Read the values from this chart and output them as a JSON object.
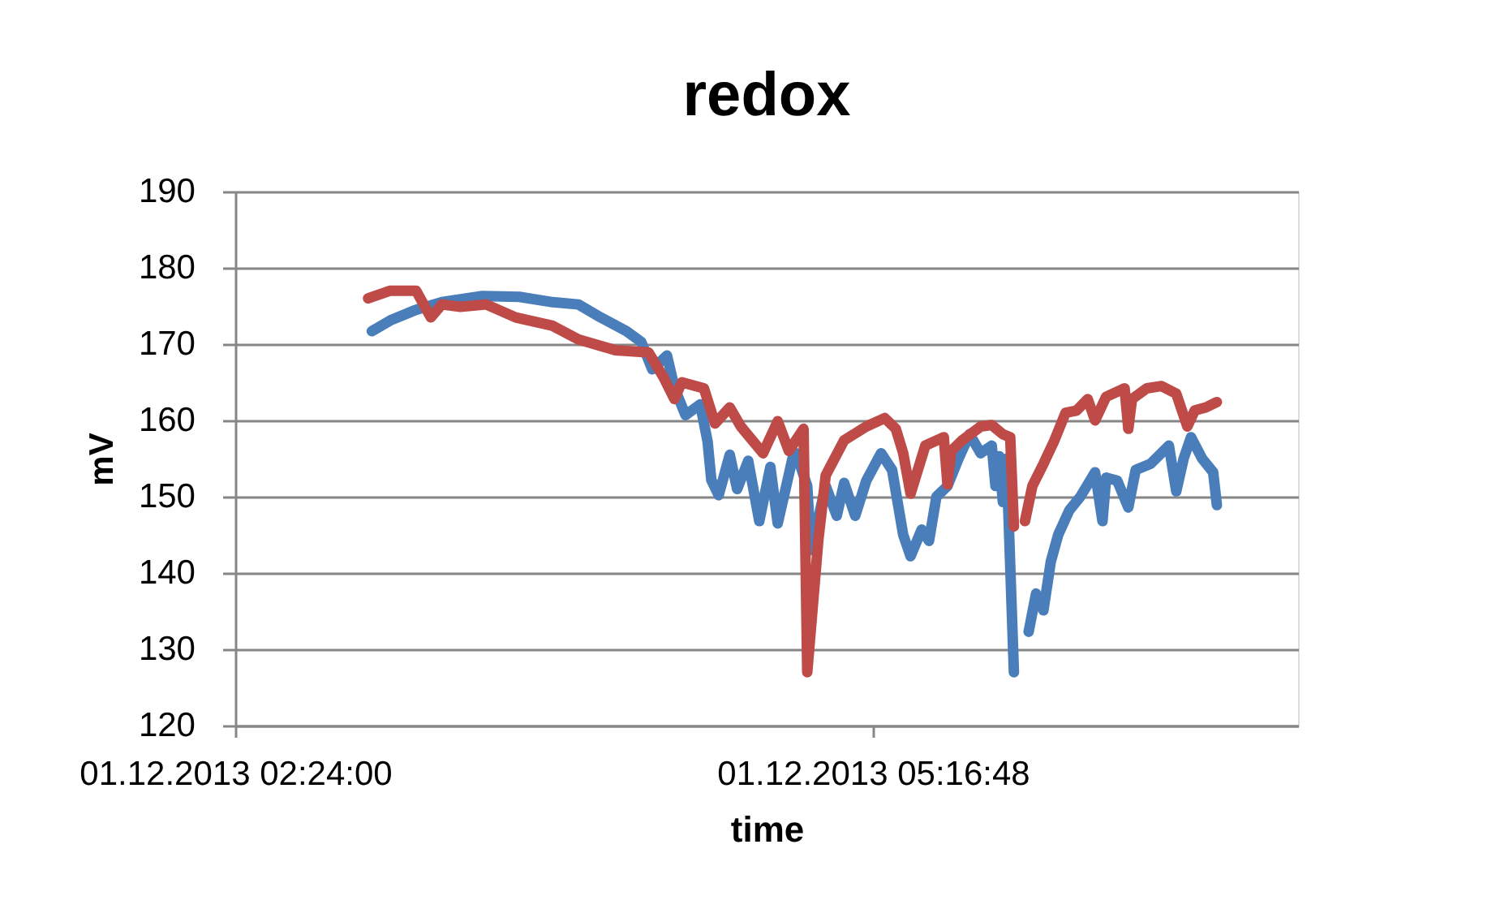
{
  "chart_data": {
    "type": "line",
    "title": "redox",
    "xlabel": "time",
    "ylabel": "mV",
    "xlim": [
      "2013-12-01T02:24",
      "2013-12-01T07:12"
    ],
    "xticks": [
      {
        "value": "2013-12-01T02:24",
        "label": "01.12.2013 02:24:00"
      },
      {
        "value": "2013-12-01T05:16:48",
        "label": "01.12.2013 05:16:48"
      }
    ],
    "ylim": [
      120,
      190
    ],
    "yticks": [
      120,
      130,
      140,
      150,
      160,
      170,
      180,
      190
    ],
    "grid": "y",
    "series": [
      {
        "color": "#4a7ebb",
        "x": [
          "2013-12-01T03:01",
          "2013-12-01T03:06",
          "2013-12-01T03:13",
          "2013-12-01T03:20",
          "2013-12-01T03:31",
          "2013-12-01T03:41",
          "2013-12-01T03:50",
          "2013-12-01T03:57",
          "2013-12-01T04:03",
          "2013-12-01T04:10",
          "2013-12-01T04:14",
          "2013-12-01T04:17",
          "2013-12-01T04:21",
          "2013-12-01T04:23",
          "2013-12-01T04:26",
          "2013-12-01T04:30",
          "2013-12-01T04:32",
          "2013-12-01T04:33",
          "2013-12-01T04:35",
          "2013-12-01T04:38",
          "2013-12-01T04:40",
          "2013-12-01T04:43",
          "2013-12-01T04:46",
          "2013-12-01T04:49",
          "2013-12-01T04:51",
          "2013-12-01T04:55",
          "2013-12-01T04:56",
          "2013-12-01T04:59",
          "2013-12-01T05:00",
          "2013-12-01T05:04",
          "2013-12-01T05:07",
          "2013-12-01T05:09",
          "2013-12-01T05:12",
          "2013-12-01T05:15",
          "2013-12-01T05:19",
          "2013-12-01T05:22",
          "2013-12-01T05:25",
          "2013-12-01T05:27",
          "2013-12-01T05:30",
          "2013-12-01T05:32",
          "2013-12-01T05:34",
          "2013-12-01T05:37",
          "2013-12-01T05:40",
          "2013-12-01T05:43",
          "2013-12-01T05:46",
          "2013-12-01T05:49",
          "2013-12-01T05:50",
          "2013-12-01T05:51",
          "2013-12-01T05:52",
          "2013-12-01T05:53",
          "2013-12-01T05:55",
          "2013-12-01T05:57",
          "2013-12-01T05:59",
          "2013-12-01T06:01",
          "2013-12-01T06:03",
          "2013-12-01T06:05",
          "2013-12-01T06:07",
          "2013-12-01T06:10",
          "2013-12-01T06:13",
          "2013-12-01T06:17",
          "2013-12-01T06:19",
          "2013-12-01T06:20",
          "2013-12-01T06:23",
          "2013-12-01T06:26",
          "2013-12-01T06:28",
          "2013-12-01T06:32",
          "2013-12-01T06:37",
          "2013-12-01T06:39",
          "2013-12-01T06:41",
          "2013-12-01T06:43",
          "2013-12-01T06:46",
          "2013-12-01T06:49",
          "2013-12-01T06:50"
        ],
        "values": [
          171.7,
          173.1,
          174.5,
          175.5,
          176.3,
          176.2,
          175.5,
          175.2,
          173.5,
          171.7,
          170.3,
          166.7,
          168.5,
          164.3,
          160.7,
          162.1,
          157.2,
          152.2,
          150.2,
          155.5,
          151.0,
          154.7,
          146.8,
          153.9,
          146.5,
          155.0,
          155.7,
          151.4,
          143.0,
          151.4,
          147.5,
          151.8,
          147.5,
          152.1,
          155.7,
          153.5,
          145.0,
          142.2,
          145.7,
          144.2,
          150.0,
          151.4,
          155.0,
          158.2,
          155.7,
          156.7,
          151.4,
          155.3,
          149.3,
          155.0,
          127.0,
          null,
          132.3,
          137.3,
          135.1,
          141.5,
          145.0,
          148.2,
          150.0,
          153.2,
          146.8,
          152.5,
          152.1,
          148.6,
          153.5,
          154.3,
          156.7,
          150.7,
          155.0,
          157.8,
          155.0,
          153.2,
          148.9
        ]
      },
      {
        "color": "#be4b48",
        "x": [
          "2013-12-01T03:00",
          "2013-12-01T03:06",
          "2013-12-01T03:13",
          "2013-12-01T03:17",
          "2013-12-01T03:20",
          "2013-12-01T03:25",
          "2013-12-01T03:32",
          "2013-12-01T03:40",
          "2013-12-01T03:50",
          "2013-12-01T03:57",
          "2013-12-01T04:07",
          "2013-12-01T04:16",
          "2013-12-01T04:20",
          "2013-12-01T04:23",
          "2013-12-01T04:25",
          "2013-12-01T04:31",
          "2013-12-01T04:34",
          "2013-12-01T04:38",
          "2013-12-01T04:41",
          "2013-12-01T04:47",
          "2013-12-01T04:51",
          "2013-12-01T04:54",
          "2013-12-01T04:58",
          "2013-12-01T04:59",
          "2013-12-01T05:02",
          "2013-12-01T05:04",
          "2013-12-01T05:09",
          "2013-12-01T05:15",
          "2013-12-01T05:20",
          "2013-12-01T05:23",
          "2013-12-01T05:25",
          "2013-12-01T05:27",
          "2013-12-01T05:31",
          "2013-12-01T05:36",
          "2013-12-01T05:37",
          "2013-12-01T05:38",
          "2013-12-01T05:41",
          "2013-12-01T05:46",
          "2013-12-01T05:49",
          "2013-12-01T05:52",
          "2013-12-01T05:54",
          "2013-12-01T05:55",
          "2013-12-01T05:57",
          "2013-12-01T05:58",
          "2013-12-01T06:00",
          "2013-12-01T06:03",
          "2013-12-01T06:06",
          "2013-12-01T06:09",
          "2013-12-01T06:12",
          "2013-12-01T06:15",
          "2013-12-01T06:17",
          "2013-12-01T06:20",
          "2013-12-01T06:25",
          "2013-12-01T06:26",
          "2013-12-01T06:27",
          "2013-12-01T06:31",
          "2013-12-01T06:35",
          "2013-12-01T06:39",
          "2013-12-01T06:42",
          "2013-12-01T06:44",
          "2013-12-01T06:47",
          "2013-12-01T06:50"
        ],
        "values": [
          176.0,
          177.0,
          177.0,
          173.5,
          175.2,
          174.9,
          175.2,
          173.5,
          172.4,
          170.6,
          169.2,
          168.9,
          165.7,
          162.8,
          165.0,
          164.2,
          159.6,
          161.7,
          159.2,
          155.7,
          159.9,
          156.0,
          158.9,
          127.0,
          144.3,
          152.8,
          157.4,
          159.2,
          160.3,
          158.9,
          155.7,
          150.4,
          156.7,
          157.8,
          151.6,
          156.0,
          157.4,
          159.2,
          159.4,
          158.2,
          157.8,
          146.1,
          null,
          146.8,
          151.4,
          154.3,
          157.4,
          161.0,
          161.3,
          162.8,
          160.0,
          163.1,
          164.2,
          158.9,
          162.8,
          164.2,
          164.5,
          163.5,
          159.2,
          161.3,
          161.7,
          162.4
        ]
      }
    ]
  }
}
